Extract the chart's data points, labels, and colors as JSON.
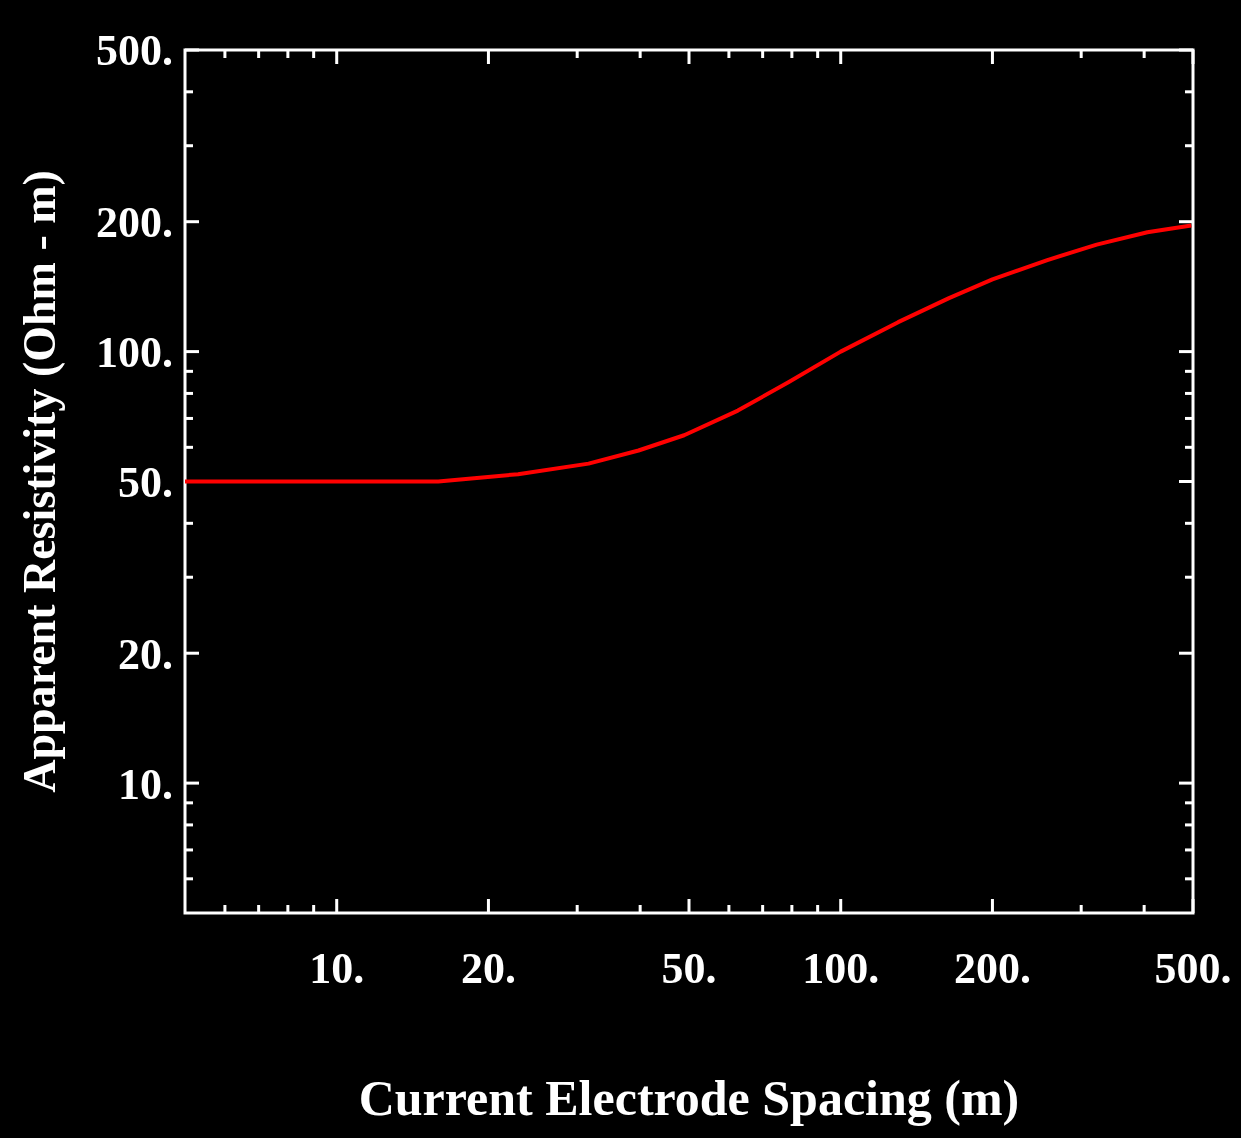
{
  "chart_data": {
    "type": "line",
    "xlabel": "Current Electrode Spacing (m)",
    "ylabel": "Apparent Resistivity (Ohm - m)",
    "log": "xy",
    "grid": false,
    "marker": "none",
    "line_style": "solid",
    "xlim": [
      5,
      500
    ],
    "ylim": [
      5,
      500
    ],
    "xticks": [
      {
        "value": 6,
        "label": null
      },
      {
        "value": 7,
        "label": null
      },
      {
        "value": 8,
        "label": null
      },
      {
        "value": 9,
        "label": null
      },
      {
        "value": 10,
        "label": "10."
      },
      {
        "value": 20,
        "label": "20."
      },
      {
        "value": 30,
        "label": null
      },
      {
        "value": 40,
        "label": null
      },
      {
        "value": 50,
        "label": "50."
      },
      {
        "value": 60,
        "label": null
      },
      {
        "value": 70,
        "label": null
      },
      {
        "value": 80,
        "label": null
      },
      {
        "value": 90,
        "label": null
      },
      {
        "value": 100,
        "label": "100."
      },
      {
        "value": 200,
        "label": "200."
      },
      {
        "value": 300,
        "label": null
      },
      {
        "value": 400,
        "label": null
      },
      {
        "value": 500,
        "label": "500."
      }
    ],
    "yticks": [
      {
        "value": 6,
        "label": null
      },
      {
        "value": 7,
        "label": null
      },
      {
        "value": 8,
        "label": null
      },
      {
        "value": 9,
        "label": null
      },
      {
        "value": 10,
        "label": "10."
      },
      {
        "value": 20,
        "label": "20."
      },
      {
        "value": 30,
        "label": null
      },
      {
        "value": 40,
        "label": null
      },
      {
        "value": 50,
        "label": "50."
      },
      {
        "value": 60,
        "label": null
      },
      {
        "value": 70,
        "label": null
      },
      {
        "value": 80,
        "label": null
      },
      {
        "value": 90,
        "label": null
      },
      {
        "value": 100,
        "label": "100."
      },
      {
        "value": 200,
        "label": "200."
      },
      {
        "value": 300,
        "label": null
      },
      {
        "value": 400,
        "label": null
      },
      {
        "value": 500,
        "label": "500."
      }
    ],
    "x": [
      5,
      15.9,
      22.9,
      31.6,
      39.7,
      48.9,
      62.5,
      78.9,
      100,
      130,
      164,
      200,
      257,
      322,
      406,
      496
    ],
    "series": [
      {
        "color": "#ff0000",
        "values": [
          50,
          50,
          52,
          55,
          59,
          64,
          73,
          85,
          100,
          117,
          133,
          147,
          163,
          177,
          189,
          196
        ]
      }
    ]
  }
}
